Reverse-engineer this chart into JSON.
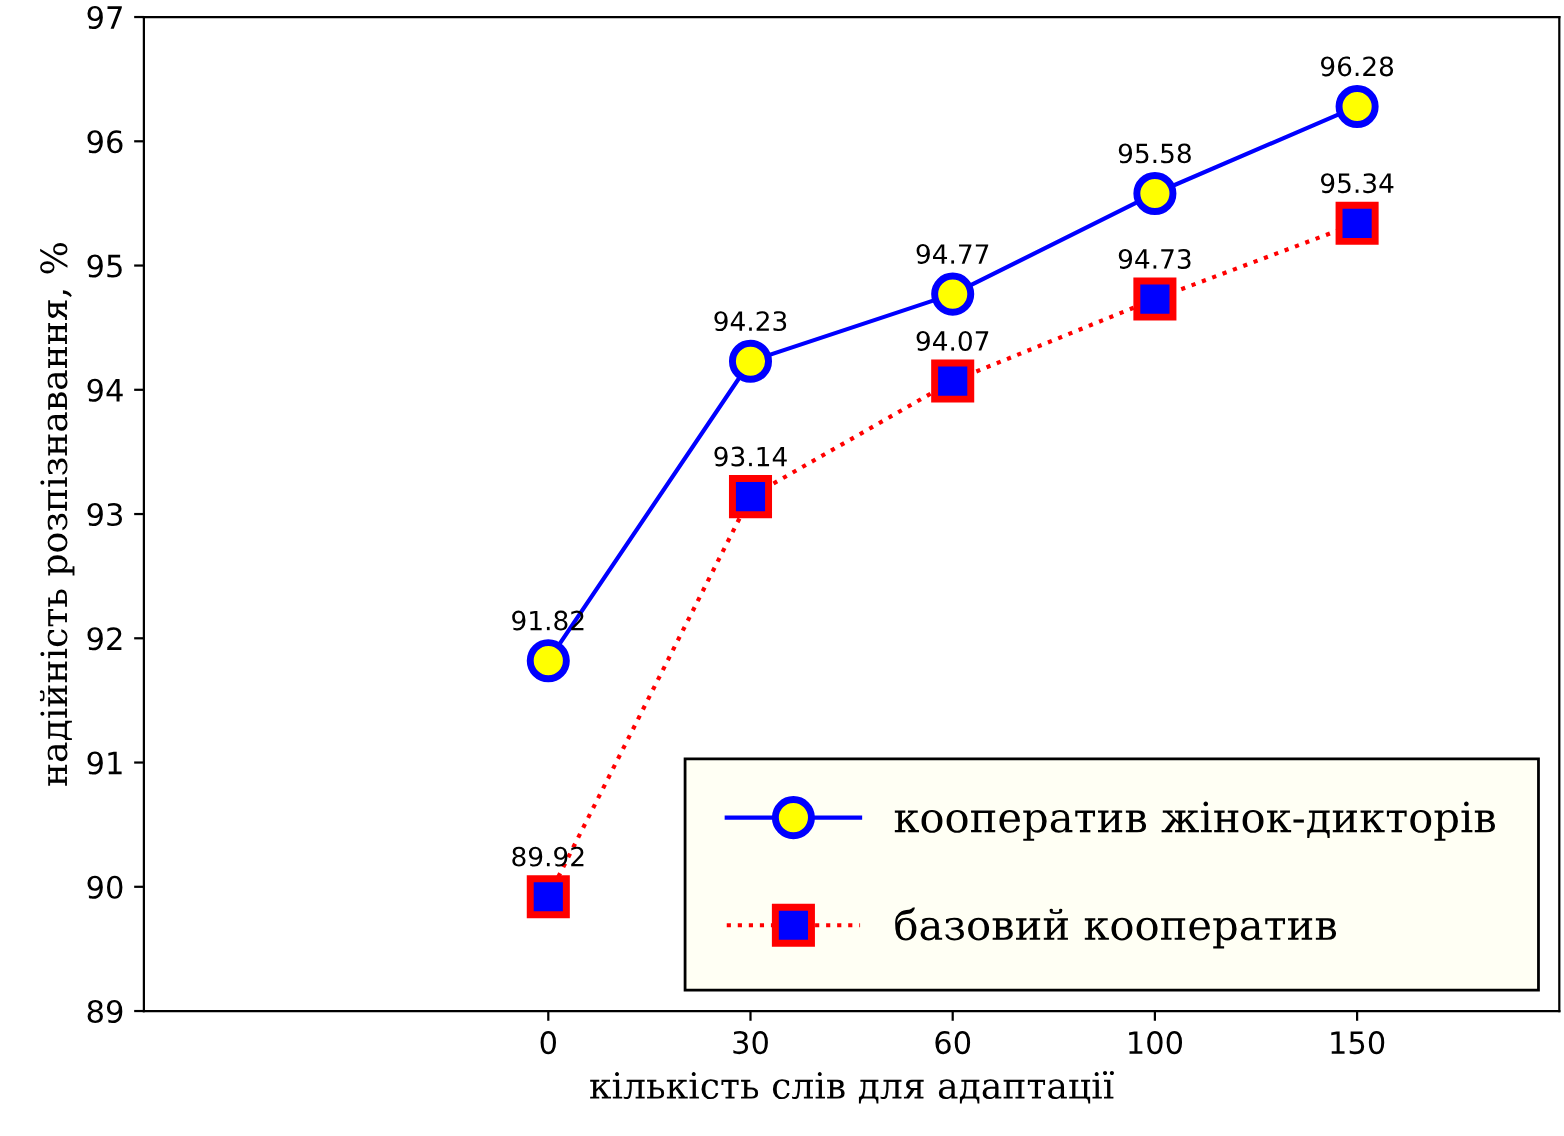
{
  "chart_data": {
    "type": "line",
    "xlabel": "кількість слів для адаптації",
    "ylabel": "надійність розпізнавання, %",
    "categories": [
      "0",
      "30",
      "60",
      "100",
      "150"
    ],
    "series": [
      {
        "name": "кооператив жінок-дикторів",
        "color": "#0000ff",
        "values": [
          91.82,
          94.23,
          94.77,
          95.58,
          96.28
        ],
        "marker": "circle",
        "line_style": "solid"
      },
      {
        "name": "базовий кооператив",
        "color": "#ff0000",
        "values": [
          89.92,
          93.14,
          94.07,
          94.73,
          95.34
        ],
        "marker": "square",
        "line_style": "dotted"
      }
    ],
    "ylim": [
      89,
      97
    ],
    "yticks": [
      89,
      90,
      91,
      92,
      93,
      94,
      95,
      96,
      97
    ],
    "data_labels": true,
    "grid": false,
    "legend": "bottom right"
  }
}
